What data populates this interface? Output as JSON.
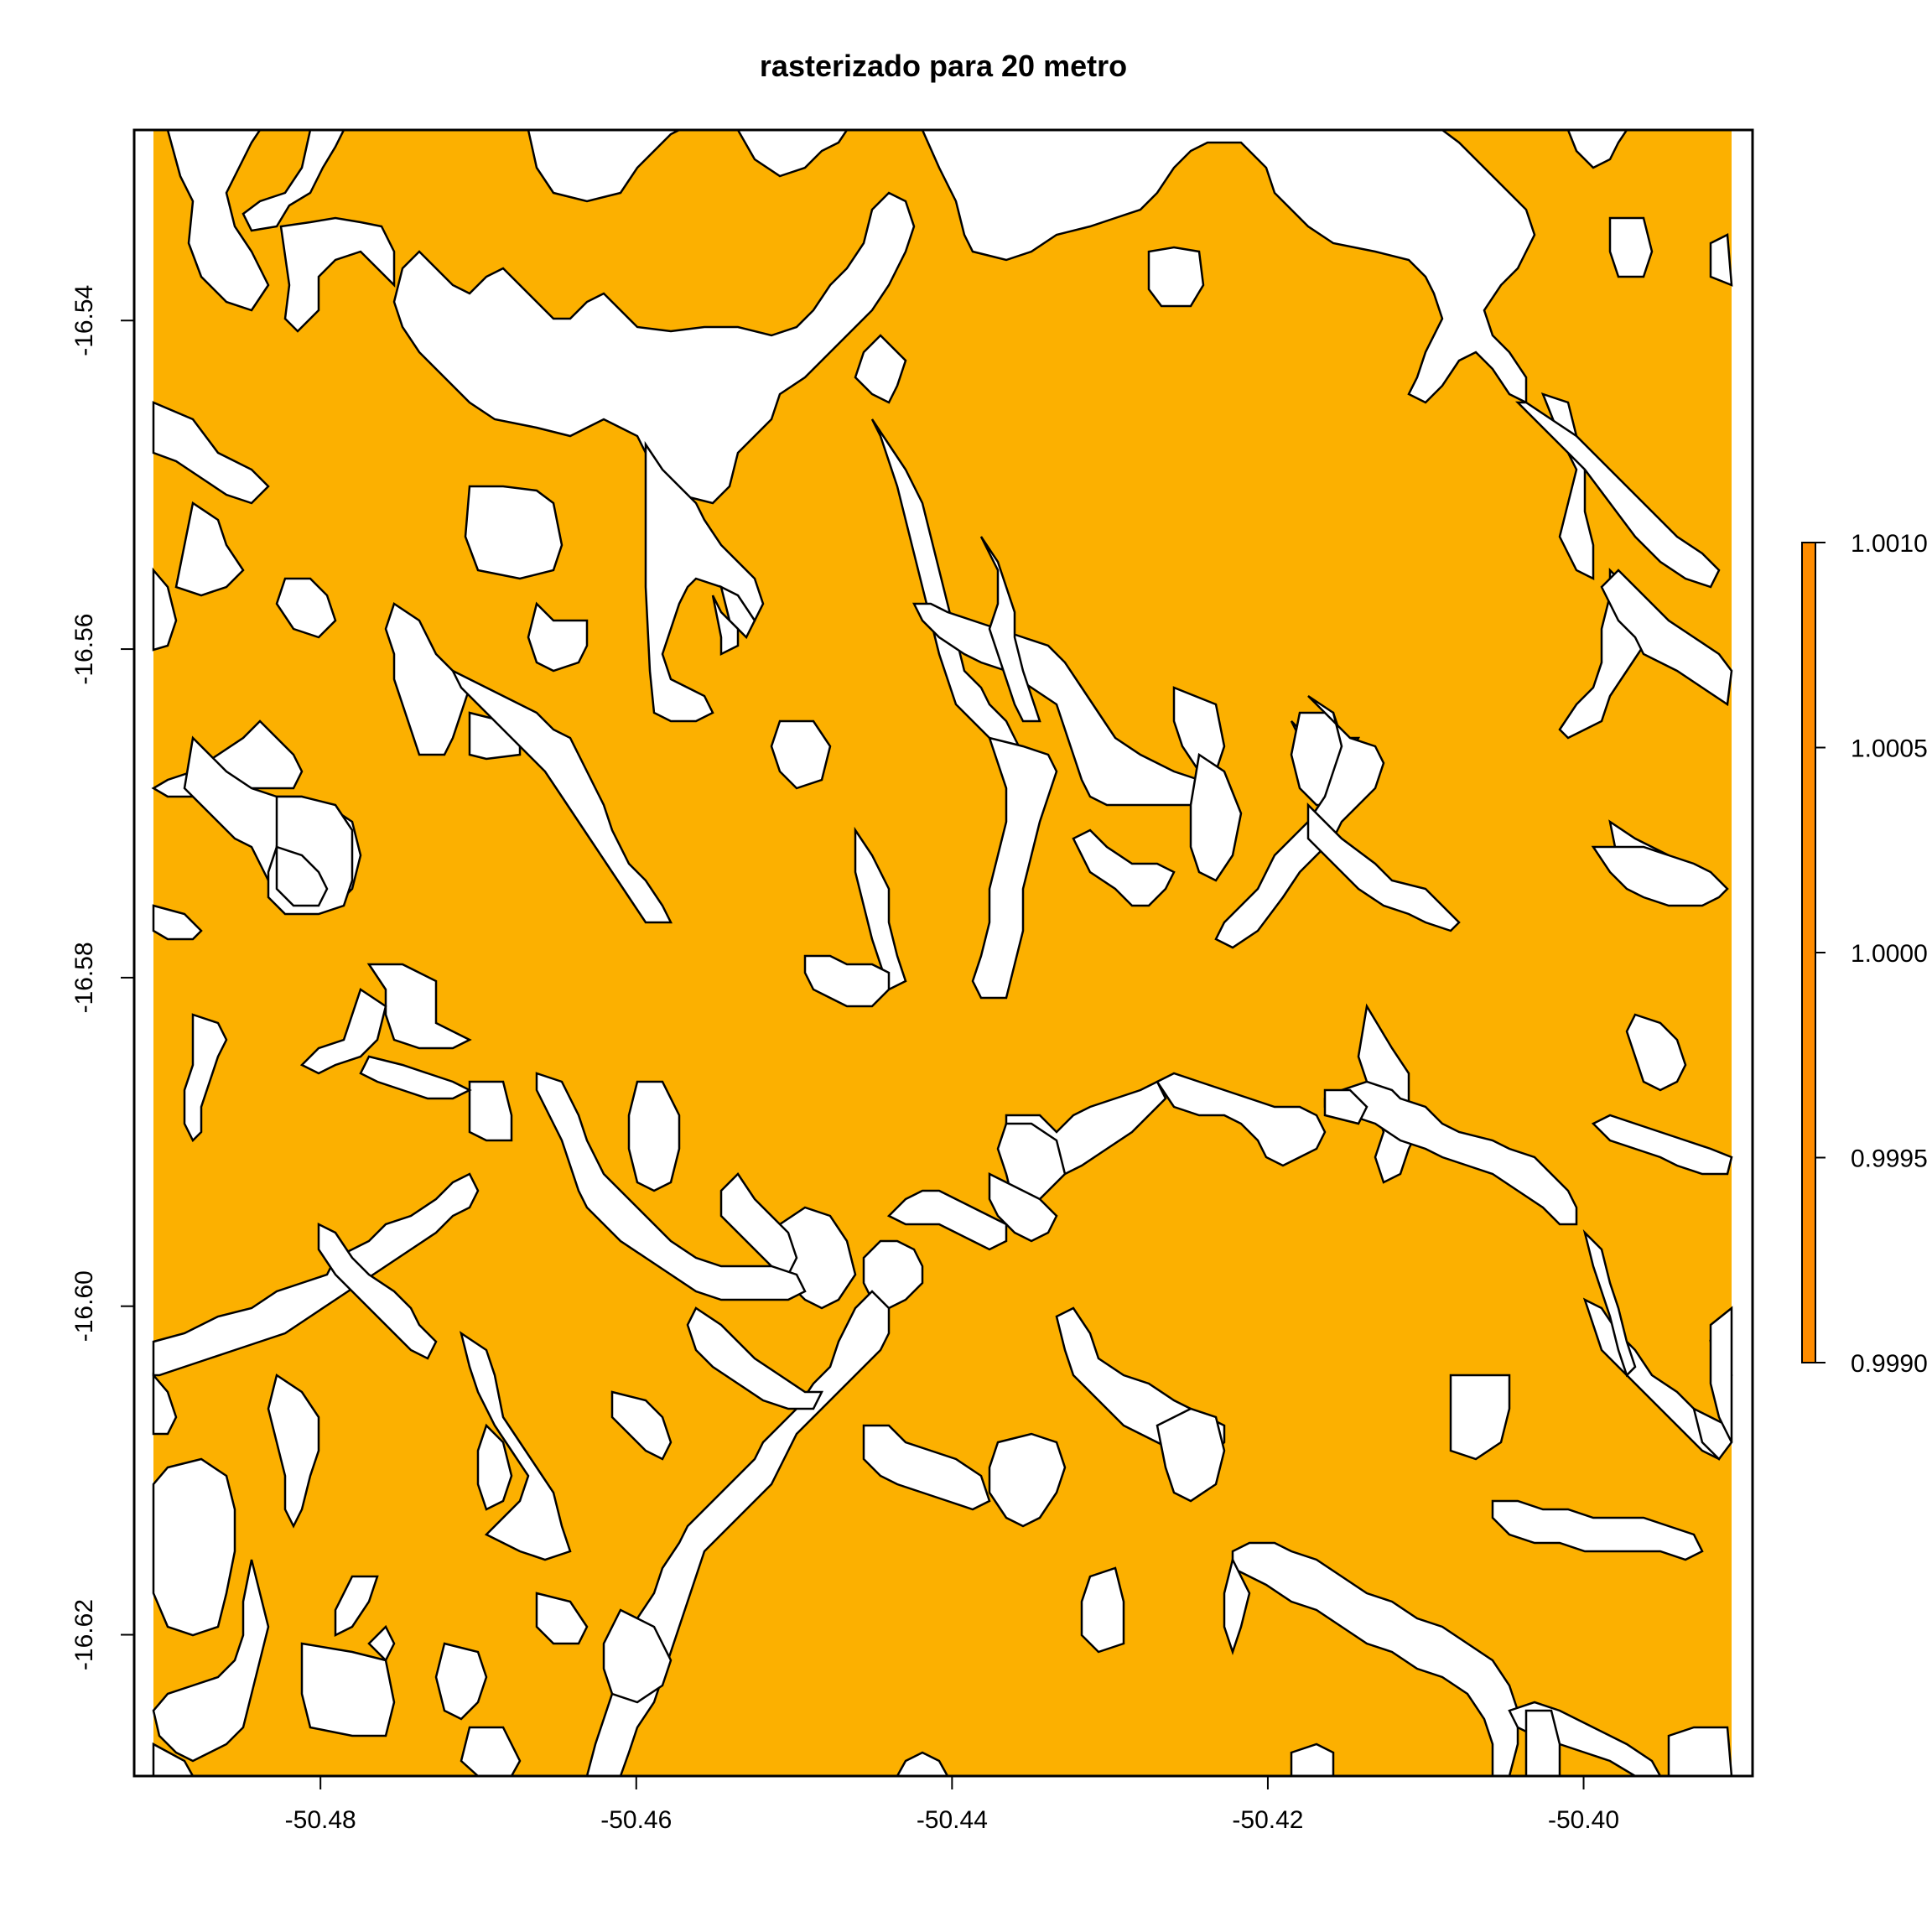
{
  "title": "rasterizado para 20 metro",
  "colors": {
    "fill": "#FCB000",
    "background": "#FFFFFF",
    "outline": "#000000",
    "legend_bar": "#FF8C00"
  },
  "x_axis": {
    "ticks": [
      -50.48,
      -50.46,
      -50.44,
      -50.42,
      -50.4
    ],
    "tick_labels": [
      "-50.48",
      "-50.46",
      "-50.44",
      "-50.42",
      "-50.40"
    ],
    "range": [
      -50.4918,
      -50.3893
    ]
  },
  "y_axis": {
    "ticks": [
      -16.54,
      -16.56,
      -16.58,
      -16.6,
      -16.62
    ],
    "tick_labels": [
      "-16.54",
      "-16.56",
      "-16.58",
      "-16.60",
      "-16.62"
    ],
    "range": [
      -16.6286,
      -16.5284
    ]
  },
  "legend": {
    "placement": "right",
    "tick_labels": [
      "1.0010",
      "1.0005",
      "1.0000",
      "0.9995",
      "0.9990"
    ],
    "values": [
      1.001,
      1.0005,
      1.0,
      0.9995,
      0.999
    ]
  },
  "map": {
    "layer_value": 1,
    "description_of_fill": "raster cells with value 1 shown in orange; unfilled areas white"
  }
}
